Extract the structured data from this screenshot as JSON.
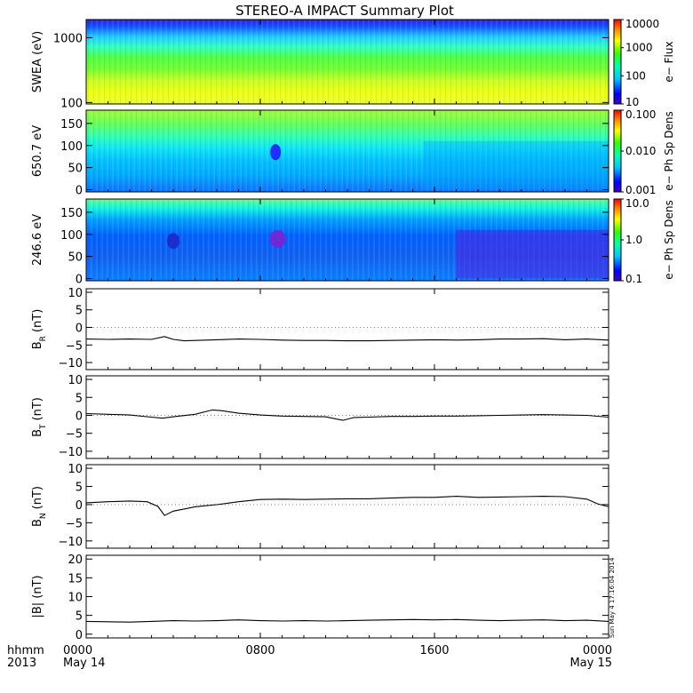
{
  "title": "STEREO-A IMPACT Summary Plot",
  "stamp": "Sun May  4 17:16:04 2014",
  "chart_data": [
    {
      "id": "swea",
      "type": "heatmap",
      "ylabel": "SWEA (eV)",
      "yscale": "log",
      "ylim": [
        95,
        1900
      ],
      "yticks": [
        {
          "value": 100,
          "label": "100"
        },
        {
          "value": 1000,
          "label": "1000"
        }
      ],
      "colorbar": {
        "label": "e− Flux",
        "scale": "log",
        "range": [
          10,
          10000
        ],
        "ticks": [
          {
            "value": 10,
            "label": "10"
          },
          {
            "value": 100,
            "label": "100"
          },
          {
            "value": 1000,
            "label": "1000"
          },
          {
            "value": 10000,
            "label": "10000"
          }
        ]
      },
      "description_bands": [
        {
          "y": [
            1500,
            1900
          ],
          "level": 15
        },
        {
          "y": [
            1100,
            1500
          ],
          "level": 40
        },
        {
          "y": [
            800,
            1100
          ],
          "level": 150
        },
        {
          "y": [
            500,
            800
          ],
          "level": 700
        },
        {
          "y": [
            250,
            500
          ],
          "level": 2000
        },
        {
          "y": [
            95,
            250
          ],
          "level": 5000
        }
      ]
    },
    {
      "id": "pad650",
      "type": "heatmap",
      "ylabel": "650.7 eV",
      "yscale": "linear",
      "ylim": [
        -5,
        180
      ],
      "yticks": [
        {
          "value": 0,
          "label": "0"
        },
        {
          "value": 50,
          "label": "50"
        },
        {
          "value": 100,
          "label": "100"
        },
        {
          "value": 150,
          "label": "150"
        }
      ],
      "colorbar": {
        "label": "e− Ph Sp Dens",
        "scale": "log",
        "range": [
          0.001,
          0.1
        ],
        "ticks": [
          {
            "value": 0.001,
            "label": "0.001"
          },
          {
            "value": 0.01,
            "label": "0.010"
          },
          {
            "value": 0.1,
            "label": "0.100"
          }
        ]
      }
    },
    {
      "id": "pad246",
      "type": "heatmap",
      "ylabel": "246.6 eV",
      "yscale": "linear",
      "ylim": [
        -5,
        180
      ],
      "yticks": [
        {
          "value": 0,
          "label": "0"
        },
        {
          "value": 50,
          "label": "50"
        },
        {
          "value": 100,
          "label": "100"
        },
        {
          "value": 150,
          "label": "150"
        }
      ],
      "colorbar": {
        "label": "e− Ph Sp Dens",
        "scale": "log",
        "range": [
          0.1,
          10
        ],
        "ticks": [
          {
            "value": 0.1,
            "label": "0.1"
          },
          {
            "value": 1,
            "label": "1.0"
          },
          {
            "value": 10,
            "label": "10.0"
          }
        ]
      }
    },
    {
      "id": "br",
      "type": "line",
      "ylabel": "B",
      "ylabel_sub": "R",
      "ylabel_unit": "(nT)",
      "ylim": [
        -12,
        11
      ],
      "yticks": [
        {
          "value": -10,
          "label": "−10"
        },
        {
          "value": -5,
          "label": "−5"
        },
        {
          "value": 0,
          "label": "0"
        },
        {
          "value": 5,
          "label": "5"
        },
        {
          "value": 10,
          "label": "10"
        }
      ],
      "x": [
        0,
        1,
        2,
        3,
        3.6,
        4,
        4.5,
        5,
        6,
        7,
        8,
        9,
        10,
        11,
        12,
        13,
        14,
        15,
        16,
        17,
        18,
        19,
        20,
        21,
        22,
        23,
        24
      ],
      "y": [
        -3.3,
        -3.4,
        -3.3,
        -3.4,
        -2.6,
        -3.4,
        -3.8,
        -3.7,
        -3.5,
        -3.3,
        -3.4,
        -3.6,
        -3.7,
        -3.7,
        -3.8,
        -3.8,
        -3.7,
        -3.6,
        -3.5,
        -3.6,
        -3.5,
        -3.3,
        -3.3,
        -3.2,
        -3.5,
        -3.3,
        -3.6
      ]
    },
    {
      "id": "bt",
      "type": "line",
      "ylabel": "B",
      "ylabel_sub": "T",
      "ylabel_unit": "(nT)",
      "ylim": [
        -12,
        11
      ],
      "yticks": [
        {
          "value": -10,
          "label": "−10"
        },
        {
          "value": -5,
          "label": "−5"
        },
        {
          "value": 0,
          "label": "0"
        },
        {
          "value": 5,
          "label": "5"
        },
        {
          "value": 10,
          "label": "10"
        }
      ],
      "x": [
        0,
        1,
        2,
        3,
        3.5,
        4,
        5,
        5.8,
        6.2,
        7,
        8,
        9,
        10,
        11,
        11.8,
        12.3,
        13,
        14,
        15,
        16,
        17,
        18,
        19,
        20,
        21,
        22,
        23,
        24
      ],
      "y": [
        0.5,
        0.3,
        0.1,
        -0.5,
        -0.8,
        -0.4,
        0.3,
        1.5,
        1.3,
        0.6,
        0.1,
        -0.2,
        -0.3,
        -0.4,
        -1.4,
        -0.6,
        -0.5,
        -0.3,
        -0.3,
        -0.2,
        -0.2,
        -0.1,
        0.0,
        0.1,
        0.2,
        0.1,
        0.0,
        -0.5
      ]
    },
    {
      "id": "bn",
      "type": "line",
      "ylabel": "B",
      "ylabel_sub": "N",
      "ylabel_unit": "(nT)",
      "ylim": [
        -12,
        11
      ],
      "yticks": [
        {
          "value": -10,
          "label": "−10"
        },
        {
          "value": -5,
          "label": "−5"
        },
        {
          "value": 0,
          "label": "0"
        },
        {
          "value": 5,
          "label": "5"
        },
        {
          "value": 10,
          "label": "10"
        }
      ],
      "x": [
        0,
        1,
        2,
        2.8,
        3.3,
        3.6,
        4,
        4.5,
        5,
        5.5,
        6,
        7,
        8,
        9,
        10,
        11,
        12,
        13,
        14,
        15,
        16,
        17,
        18,
        19,
        20,
        21,
        22,
        23,
        23.5,
        24
      ],
      "y": [
        0.5,
        0.8,
        1.0,
        0.8,
        -0.5,
        -3.0,
        -1.8,
        -1.2,
        -0.6,
        -0.3,
        0.0,
        0.8,
        1.4,
        1.5,
        1.4,
        1.5,
        1.6,
        1.6,
        1.8,
        2.0,
        2.0,
        2.3,
        2.0,
        2.1,
        2.2,
        2.3,
        2.2,
        1.5,
        0.2,
        -0.6
      ]
    },
    {
      "id": "bmag",
      "type": "line",
      "ylabel": "|B| (nT)",
      "ylim": [
        -1,
        21
      ],
      "yticks": [
        {
          "value": 0,
          "label": "0"
        },
        {
          "value": 5,
          "label": "5"
        },
        {
          "value": 10,
          "label": "10"
        },
        {
          "value": 15,
          "label": "15"
        },
        {
          "value": 20,
          "label": "20"
        }
      ],
      "x": [
        0,
        1,
        2,
        3,
        4,
        5,
        6,
        7,
        8,
        9,
        10,
        11,
        12,
        13,
        14,
        15,
        16,
        17,
        18,
        19,
        20,
        21,
        22,
        23,
        24
      ],
      "y": [
        3.4,
        3.3,
        3.2,
        3.4,
        3.6,
        3.5,
        3.6,
        3.8,
        3.6,
        3.5,
        3.6,
        3.5,
        3.6,
        3.7,
        3.8,
        3.9,
        3.8,
        3.9,
        3.7,
        3.6,
        3.7,
        3.8,
        3.6,
        3.7,
        3.4
      ]
    }
  ],
  "xaxis": {
    "range": [
      0,
      24
    ],
    "label_line1": "hhmm",
    "label_line2": "2013",
    "ticks": [
      {
        "value": 0,
        "label1": "0000",
        "label2": "May 14"
      },
      {
        "value": 8,
        "label1": "0800",
        "label2": ""
      },
      {
        "value": 16,
        "label1": "1600",
        "label2": ""
      },
      {
        "value": 24,
        "label1": "0000",
        "label2": "May 15"
      }
    ]
  }
}
